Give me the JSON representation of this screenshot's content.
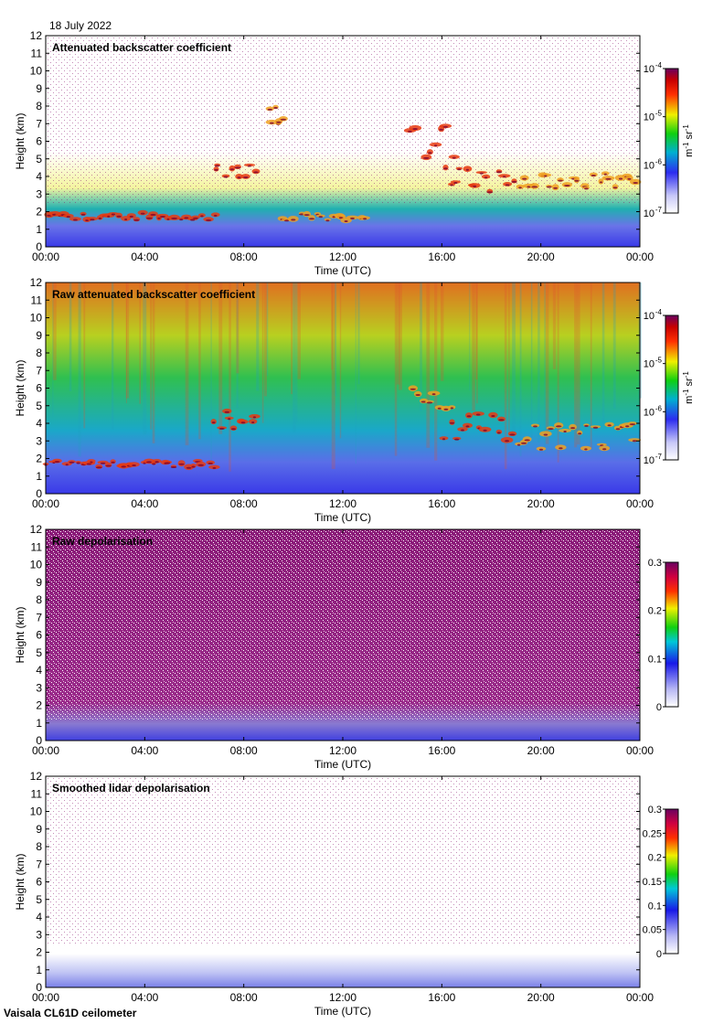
{
  "date": "18 July 2022",
  "footer": "Vaisala CL61D ceilometer",
  "chart_data": [
    {
      "type": "heatmap",
      "title": "Attenuated backscatter coefficient",
      "xlabel": "Time (UTC)",
      "ylabel": "Height (km)",
      "xticks": [
        "00:00",
        "04:00",
        "08:00",
        "12:00",
        "16:00",
        "20:00",
        "00:00"
      ],
      "yticks": [
        "0",
        "1",
        "2",
        "3",
        "4",
        "5",
        "6",
        "7",
        "8",
        "9",
        "10",
        "11",
        "12"
      ],
      "ylim": [
        0,
        12
      ],
      "colorbar": {
        "scale": "log",
        "ticks": [
          "10",
          "10",
          "10",
          "10"
        ],
        "tick_exponents": [
          "-4",
          "-5",
          "-6",
          "-7"
        ],
        "unit": "m",
        "unit_exp1": "-1",
        "unit_mid": " sr",
        "unit_exp2": "-1"
      },
      "clouds": [
        {
          "t": [
            0.0,
            6.9
          ],
          "h": [
            1.55,
            1.95
          ],
          "intensity": "high"
        },
        {
          "t": [
            6.7,
            8.6
          ],
          "h": [
            3.7,
            4.8
          ],
          "intensity": "high"
        },
        {
          "t": [
            9.0,
            9.6
          ],
          "h": [
            7.0,
            8.3
          ],
          "intensity": "medium"
        },
        {
          "t": [
            9.5,
            13.0
          ],
          "h": [
            1.5,
            2.0
          ],
          "intensity": "medium"
        },
        {
          "t": [
            14.7,
            16.5
          ],
          "h": [
            4.6,
            7.0
          ],
          "intensity": "high"
        },
        {
          "t": [
            16.0,
            19.0
          ],
          "h": [
            3.0,
            4.6
          ],
          "intensity": "high"
        },
        {
          "t": [
            19.0,
            24.0
          ],
          "h": [
            3.3,
            4.2
          ],
          "intensity": "medium"
        }
      ]
    },
    {
      "type": "heatmap",
      "title": "Raw attenuated backscatter coefficient",
      "xlabel": "Time (UTC)",
      "ylabel": "Height (km)",
      "xticks": [
        "00:00",
        "04:00",
        "08:00",
        "12:00",
        "16:00",
        "20:00",
        "00:00"
      ],
      "yticks": [
        "0",
        "1",
        "2",
        "3",
        "4",
        "5",
        "6",
        "7",
        "8",
        "9",
        "10",
        "11",
        "12"
      ],
      "ylim": [
        0,
        12
      ],
      "colorbar": {
        "scale": "log",
        "ticks": [
          "10",
          "10",
          "10",
          "10"
        ],
        "tick_exponents": [
          "-4",
          "-5",
          "-6",
          "-7"
        ],
        "unit": "m",
        "unit_exp1": "-1",
        "unit_mid": " sr",
        "unit_exp2": "-1"
      },
      "clouds": [
        {
          "t": [
            0.0,
            6.9
          ],
          "h": [
            1.5,
            1.9
          ],
          "intensity": "high"
        },
        {
          "t": [
            6.7,
            8.6
          ],
          "h": [
            3.7,
            4.8
          ],
          "intensity": "high"
        },
        {
          "t": [
            14.7,
            16.5
          ],
          "h": [
            4.6,
            6.0
          ],
          "intensity": "medium"
        },
        {
          "t": [
            16.0,
            19.0
          ],
          "h": [
            3.0,
            4.6
          ],
          "intensity": "high"
        },
        {
          "t": [
            19.0,
            24.0
          ],
          "h": [
            2.5,
            4.0
          ],
          "intensity": "medium"
        }
      ]
    },
    {
      "type": "heatmap",
      "title": "Raw depolarisation",
      "xlabel": "Time (UTC)",
      "ylabel": "Height (km)",
      "xticks": [
        "00:00",
        "04:00",
        "08:00",
        "12:00",
        "16:00",
        "20:00",
        "00:00"
      ],
      "yticks": [
        "0",
        "1",
        "2",
        "3",
        "4",
        "5",
        "6",
        "7",
        "8",
        "9",
        "10",
        "11",
        "12"
      ],
      "ylim": [
        0,
        12
      ],
      "colorbar": {
        "scale": "linear",
        "ticks": [
          "0.3",
          "0.2",
          "0.1",
          "0"
        ]
      }
    },
    {
      "type": "heatmap",
      "title": "Smoothed lidar depolarisation",
      "xlabel": "Time (UTC)",
      "ylabel": "Height (km)",
      "xticks": [
        "00:00",
        "04:00",
        "08:00",
        "12:00",
        "16:00",
        "20:00",
        "00:00"
      ],
      "yticks": [
        "0",
        "1",
        "2",
        "3",
        "4",
        "5",
        "6",
        "7",
        "8",
        "9",
        "10",
        "11",
        "12"
      ],
      "ylim": [
        0,
        12
      ],
      "colorbar": {
        "scale": "linear",
        "ticks": [
          "0.3",
          "0.25",
          "0.2",
          "0.15",
          "0.1",
          "0.05",
          "0"
        ]
      }
    }
  ]
}
